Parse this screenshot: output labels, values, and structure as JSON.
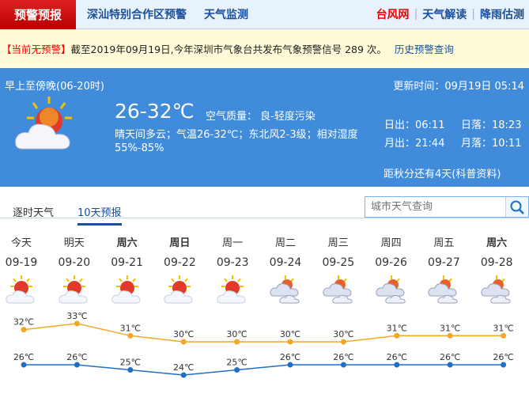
{
  "nav": {
    "active": "预警预报",
    "links": [
      "深汕特别合作区预警",
      "天气监测"
    ],
    "right": [
      "台风网",
      "天气解读",
      "降雨估测"
    ]
  },
  "warning": {
    "status": "【当前无预警】",
    "text": "截至2019年09月19日,今年深圳市气象台共发布气象预警信号 289 次。",
    "history": "历史预警查询"
  },
  "today": {
    "period": "早上至傍晚(06-20时)",
    "update": "更新时间：09月19日 05:14",
    "temp": "26-32℃",
    "air": "空气质量： 良-轻度污染",
    "desc": "晴天间多云；气温26-32℃；东北风2-3级；相对湿度55%-85%",
    "sunrise": "日出：06:11",
    "sunset": "日落：18:23",
    "moonrise": "月出：21:44",
    "moonset": "月落：10:11",
    "countdown": "距秋分还有4天(科普资料)",
    "icon": "sunny-cloudy-icon"
  },
  "tabs": [
    {
      "label": "逐时天气"
    },
    {
      "label": "10天预报",
      "active": true
    }
  ],
  "search": {
    "placeholder": "城市天气查询"
  },
  "colors": {
    "high": "#f5a623",
    "low": "#1f6fc6",
    "panel": "#418bdb",
    "alert": "#e00000"
  },
  "forecast": [
    {
      "day": "今天",
      "date": "09-19",
      "icon": "sunny-cloudy",
      "bold": false
    },
    {
      "day": "明天",
      "date": "09-20",
      "icon": "sunny-cloudy",
      "bold": false
    },
    {
      "day": "周六",
      "date": "09-21",
      "icon": "sunny-cloudy",
      "bold": true
    },
    {
      "day": "周日",
      "date": "09-22",
      "icon": "sunny-cloudy",
      "bold": true
    },
    {
      "day": "周一",
      "date": "09-23",
      "icon": "sunny-cloudy",
      "bold": false
    },
    {
      "day": "周二",
      "date": "09-24",
      "icon": "cloudy",
      "bold": false
    },
    {
      "day": "周三",
      "date": "09-25",
      "icon": "cloudy",
      "bold": false
    },
    {
      "day": "周四",
      "date": "09-26",
      "icon": "cloudy",
      "bold": false
    },
    {
      "day": "周五",
      "date": "09-27",
      "icon": "cloudy",
      "bold": false
    },
    {
      "day": "周六",
      "date": "09-28",
      "icon": "cloudy",
      "bold": true
    }
  ],
  "chart_data": {
    "type": "line",
    "unit": "℃",
    "series": [
      {
        "values": [
          32,
          33,
          31,
          30,
          30,
          30,
          30,
          31,
          31,
          31
        ]
      },
      {
        "values": [
          26,
          26,
          25,
          24,
          25,
          26,
          26,
          26,
          26,
          26
        ]
      }
    ]
  }
}
